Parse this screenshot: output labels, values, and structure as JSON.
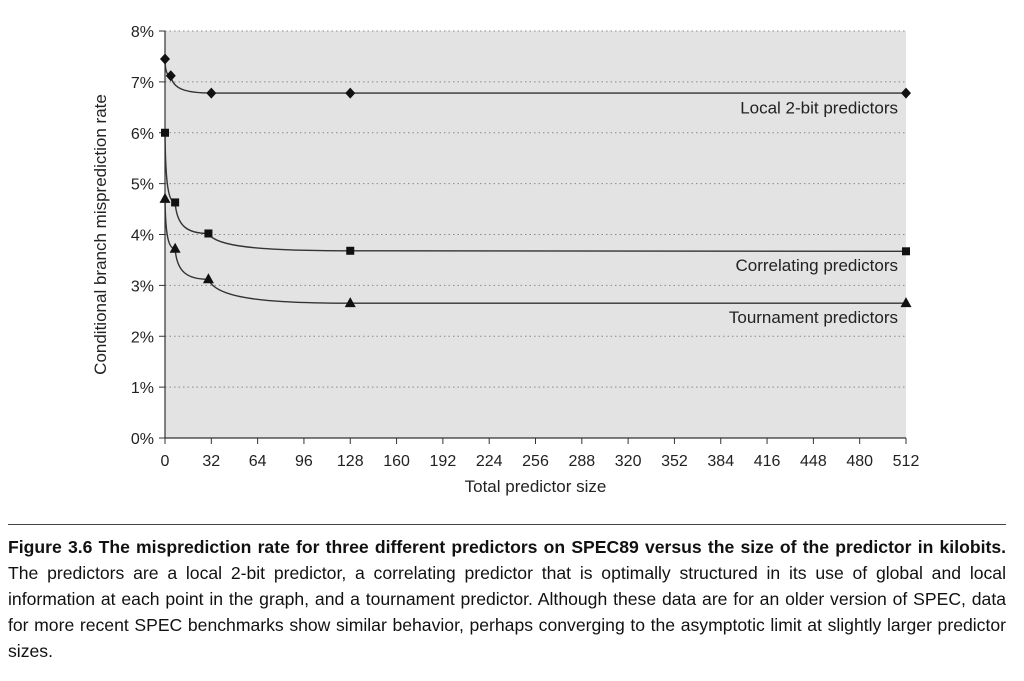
{
  "chart_data": {
    "type": "line",
    "xlabel": "Total predictor size",
    "ylabel": "Conditional branch misprediction rate",
    "xlim": [
      0,
      512
    ],
    "ylim": [
      0,
      8
    ],
    "xticks": [
      "0",
      "32",
      "64",
      "96",
      "128",
      "160",
      "192",
      "224",
      "256",
      "288",
      "320",
      "352",
      "384",
      "416",
      "448",
      "480",
      "512"
    ],
    "yticks": [
      "0%",
      "1%",
      "2%",
      "3%",
      "4%",
      "5%",
      "6%",
      "7%",
      "8%"
    ],
    "grid": true,
    "background": "#e3e3e3",
    "series": [
      {
        "name": "Local 2-bit predictors",
        "marker": "diamond",
        "x": [
          0,
          4,
          32,
          128,
          512
        ],
        "y": [
          7.45,
          7.12,
          6.78,
          6.78,
          6.78
        ]
      },
      {
        "name": "Correlating predictors",
        "marker": "square",
        "x": [
          0,
          7,
          30,
          128,
          512
        ],
        "y": [
          6.0,
          4.63,
          4.02,
          3.68,
          3.67
        ]
      },
      {
        "name": "Tournament predictors",
        "marker": "triangle",
        "x": [
          0,
          7,
          30,
          128,
          512
        ],
        "y": [
          4.7,
          3.72,
          3.12,
          2.65,
          2.65
        ]
      }
    ]
  },
  "caption": {
    "heading": "Figure 3.6 The misprediction rate for three different predictors on SPEC89 versus the size of the predictor in kilobits.",
    "body": " The predictors are a local 2-bit predictor, a correlating predictor that is optimally structured in its use of global and local information at each point in the graph, and a tournament predictor. Although these data are for an older version of SPEC, data for more recent SPEC benchmarks show similar behavior, perhaps converging to the asymptotic limit at slightly larger predictor sizes."
  }
}
